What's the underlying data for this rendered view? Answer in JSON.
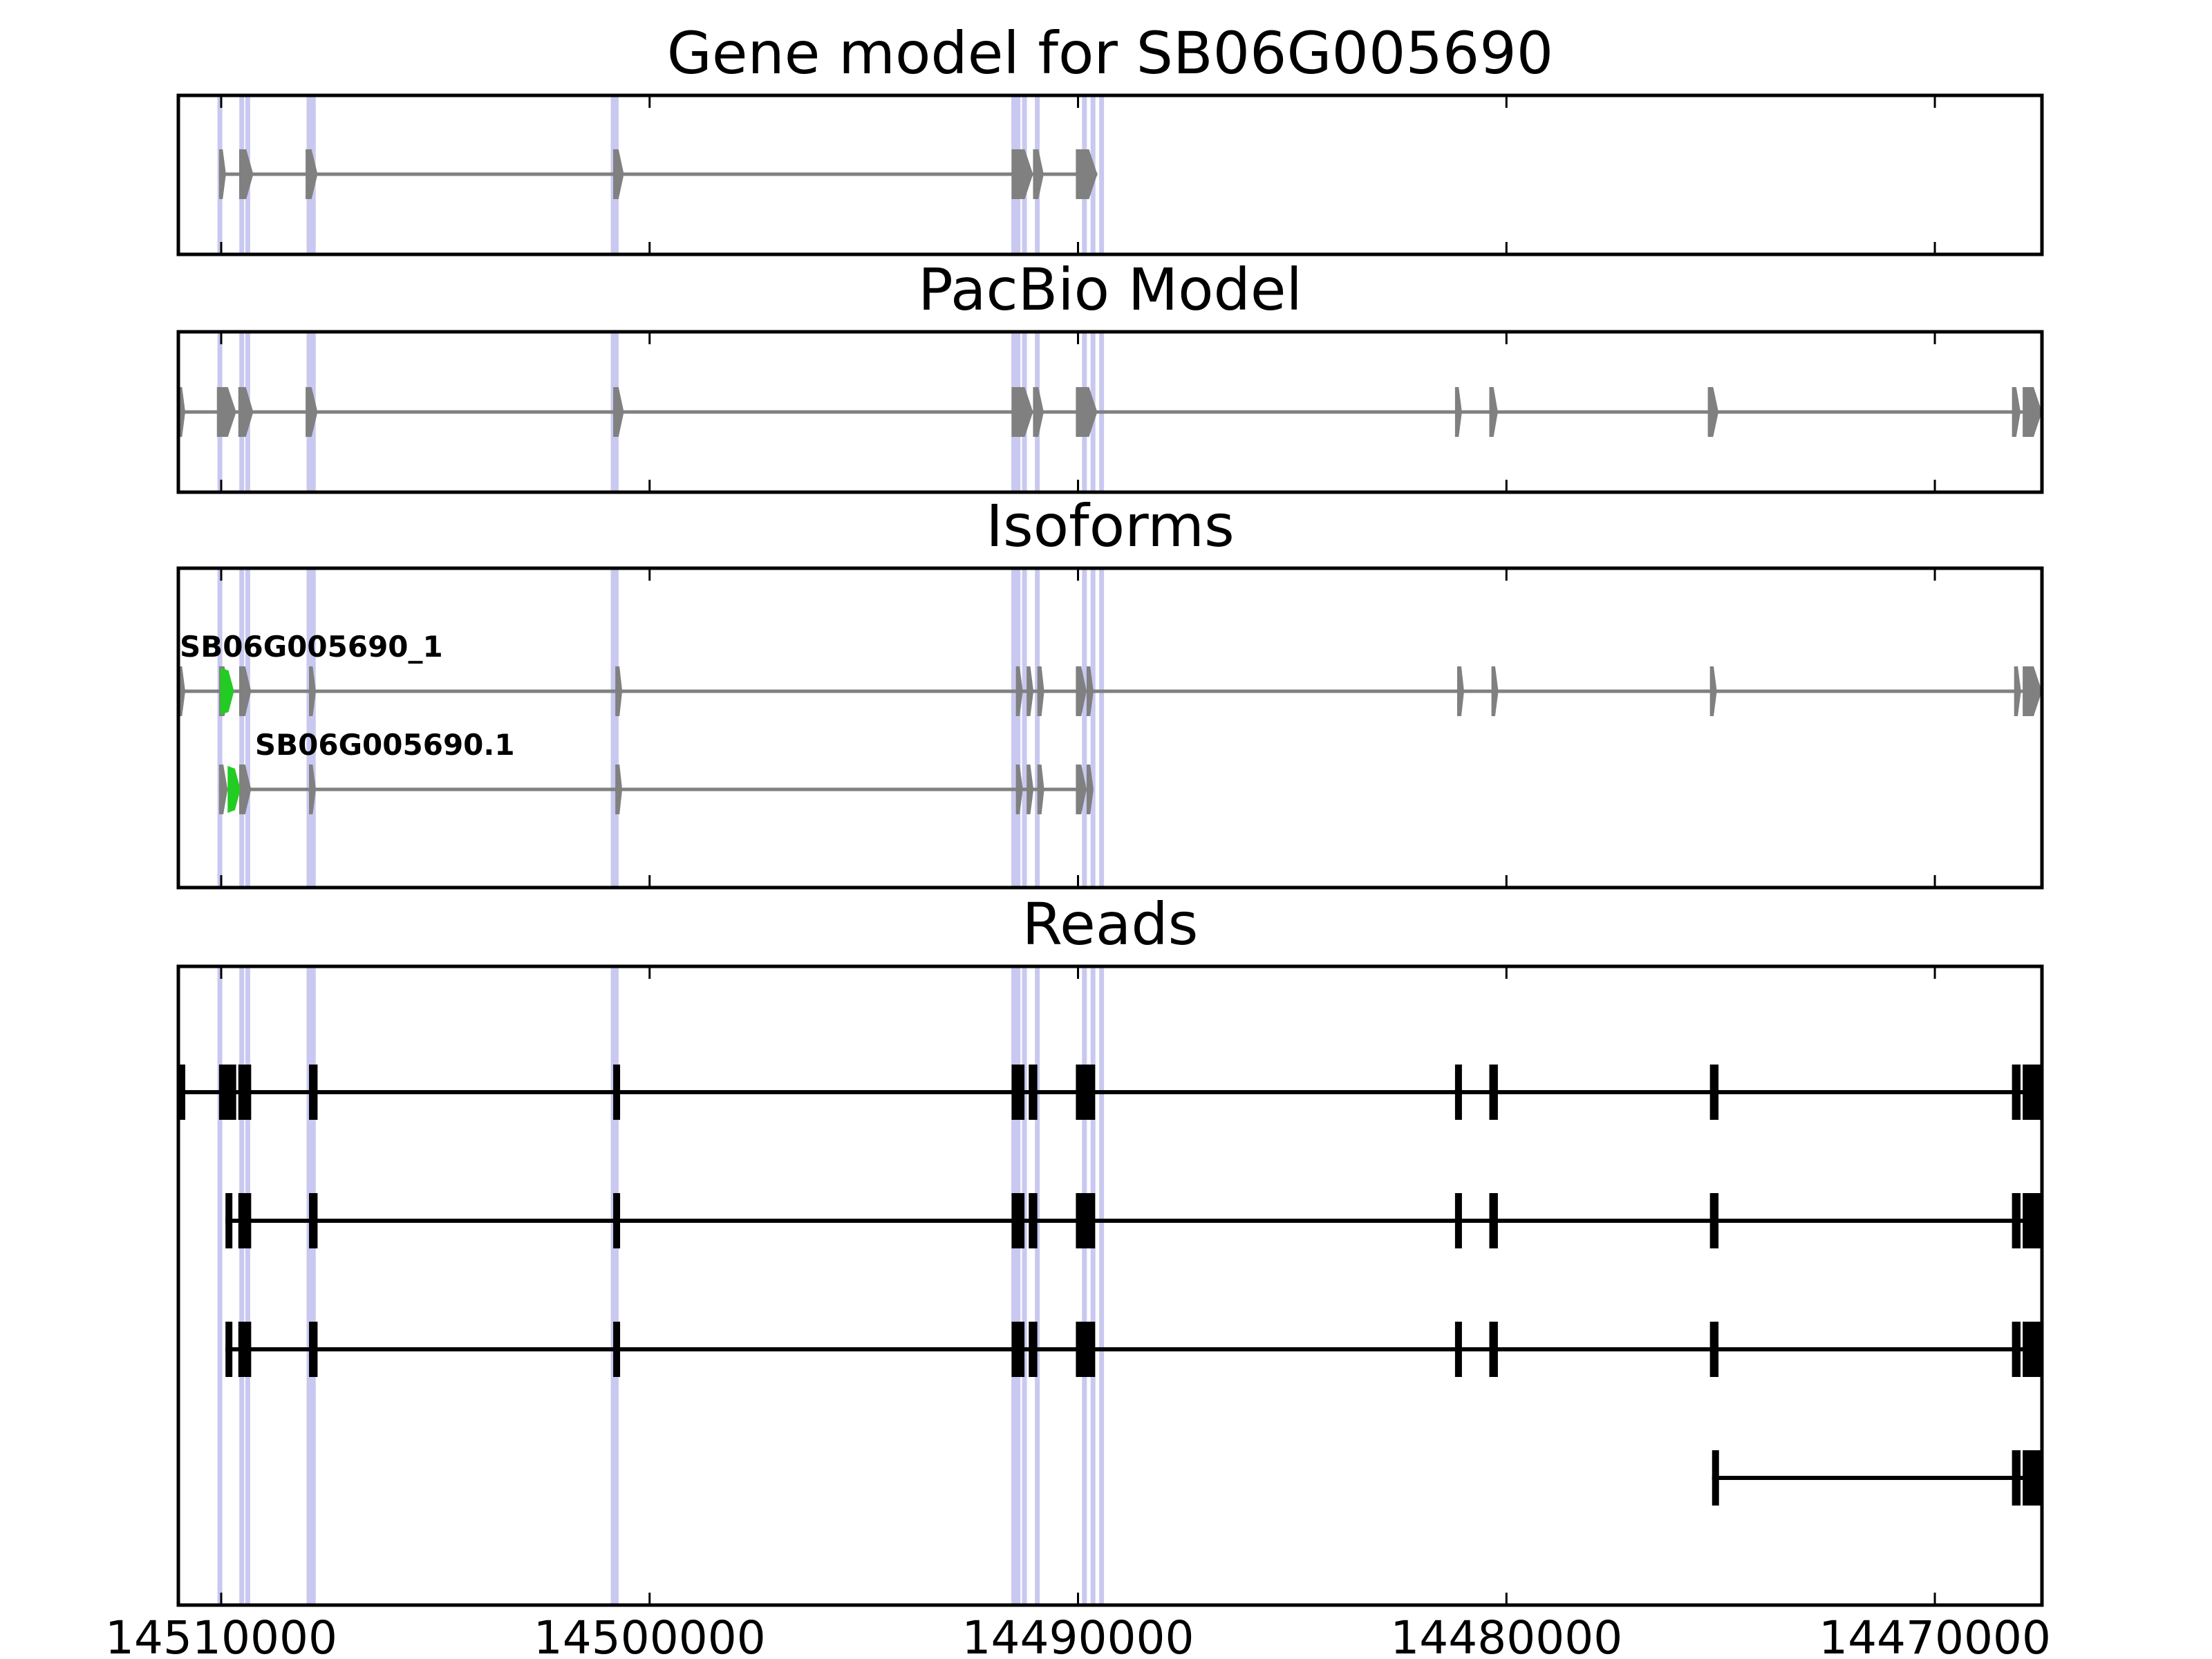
{
  "chart_data": {
    "type": "gene_structure",
    "x_axis": {
      "range": [
        14511000,
        14467500
      ],
      "reversed": true,
      "ticks": [
        14510000,
        14500000,
        14490000,
        14480000,
        14470000
      ],
      "tick_labels": [
        "14510000",
        "14500000",
        "14490000",
        "14480000",
        "14470000"
      ]
    },
    "splice_sites": [
      14510030,
      14509520,
      14509380,
      14507950,
      14507850,
      14500850,
      14500780,
      14491500,
      14491400,
      14491250,
      14490950,
      14489850,
      14489650,
      14489450
    ],
    "colors": {
      "model": "#808080",
      "highlight": "#22cc22",
      "reads": "#000000",
      "splice": "#c8c8f0"
    },
    "panels": [
      {
        "title": "Gene model for SB06G005690",
        "tracks": [
          {
            "label": "",
            "color": "#808080",
            "exons": [
              [
                14510050,
                14509900
              ],
              [
                14509580,
                14509250
              ],
              [
                14508030,
                14507750
              ],
              [
                14500850,
                14500600
              ],
              [
                14491550,
                14491050
              ],
              [
                14491050,
                14490800
              ],
              [
                14490050,
                14489550
              ]
            ]
          }
        ]
      },
      {
        "title": "PacBio Model",
        "tracks": [
          {
            "label": "",
            "color": "#808080",
            "exons": [
              [
                14511000,
                14510850
              ],
              [
                14510100,
                14509650
              ],
              [
                14509600,
                14509250
              ],
              [
                14508030,
                14507750
              ],
              [
                14500850,
                14500600
              ],
              [
                14491550,
                14491050
              ],
              [
                14491050,
                14490800
              ],
              [
                14490050,
                14489550
              ],
              [
                14481200,
                14481050
              ],
              [
                14480400,
                14480200
              ],
              [
                14475300,
                14475050
              ],
              [
                14468200,
                14468000
              ],
              [
                14467950,
                14467500
              ]
            ]
          }
        ]
      },
      {
        "title": "Isoforms",
        "tracks": [
          {
            "label": "SB06G005690_1",
            "color": "#808080",
            "exons": [
              [
                14511000,
                14510850
              ],
              [
                14510050,
                14509800
              ],
              [
                14509580,
                14509300
              ],
              [
                14507950,
                14507800
              ],
              [
                14500800,
                14500700
              ],
              [
                14491450,
                14491300
              ],
              [
                14491200,
                14491050
              ],
              [
                14490950,
                14490850
              ],
              [
                14490050,
                14489800
              ],
              [
                14489800,
                14489650
              ],
              [
                14481150,
                14481050
              ],
              [
                14480350,
                14480200
              ],
              [
                14475250,
                14475100
              ],
              [
                14468150,
                14468000
              ],
              [
                14467950,
                14467500
              ]
            ],
            "highlight": [
              [
                14510020,
                14509700
              ]
            ]
          },
          {
            "label": "SB06G005690.1",
            "color": "#808080",
            "exons": [
              [
                14510050,
                14509850
              ],
              [
                14509580,
                14509300
              ],
              [
                14507950,
                14507800
              ],
              [
                14500800,
                14500700
              ],
              [
                14491450,
                14491300
              ],
              [
                14491200,
                14491050
              ],
              [
                14490950,
                14490850
              ],
              [
                14490050,
                14489800
              ],
              [
                14489800,
                14489650
              ]
            ],
            "highlight": [
              [
                14509850,
                14509550
              ]
            ]
          }
        ]
      },
      {
        "title": "Reads",
        "tracks": [
          {
            "label": "",
            "color": "#000000",
            "exons": [
              [
                14511000,
                14510850
              ],
              [
                14510050,
                14509650
              ],
              [
                14509600,
                14509300
              ],
              [
                14507950,
                14507750
              ],
              [
                14500850,
                14500700
              ],
              [
                14491550,
                14491250
              ],
              [
                14491150,
                14490950
              ],
              [
                14490050,
                14489600
              ],
              [
                14481200,
                14481050
              ],
              [
                14480400,
                14480200
              ],
              [
                14475250,
                14475050
              ],
              [
                14468200,
                14468000
              ],
              [
                14467950,
                14467500
              ]
            ]
          },
          {
            "label": "",
            "color": "#000000",
            "exons": [
              [
                14509900,
                14509750
              ],
              [
                14509600,
                14509300
              ],
              [
                14507950,
                14507750
              ],
              [
                14500850,
                14500700
              ],
              [
                14491550,
                14491250
              ],
              [
                14491150,
                14490950
              ],
              [
                14490050,
                14489600
              ],
              [
                14481200,
                14481050
              ],
              [
                14480400,
                14480200
              ],
              [
                14475250,
                14475050
              ],
              [
                14468200,
                14468000
              ],
              [
                14467950,
                14467500
              ]
            ]
          },
          {
            "label": "",
            "color": "#000000",
            "exons": [
              [
                14509900,
                14509750
              ],
              [
                14509600,
                14509300
              ],
              [
                14507950,
                14507750
              ],
              [
                14500850,
                14500700
              ],
              [
                14491550,
                14491250
              ],
              [
                14491150,
                14490950
              ],
              [
                14490050,
                14489600
              ],
              [
                14481200,
                14481050
              ],
              [
                14480400,
                14480200
              ],
              [
                14475250,
                14475050
              ],
              [
                14468200,
                14468000
              ],
              [
                14467950,
                14467500
              ]
            ]
          },
          {
            "label": "",
            "color": "#000000",
            "exons": [
              [
                14475200,
                14475100
              ],
              [
                14468200,
                14468000
              ],
              [
                14467950,
                14467500
              ]
            ]
          }
        ]
      }
    ]
  }
}
